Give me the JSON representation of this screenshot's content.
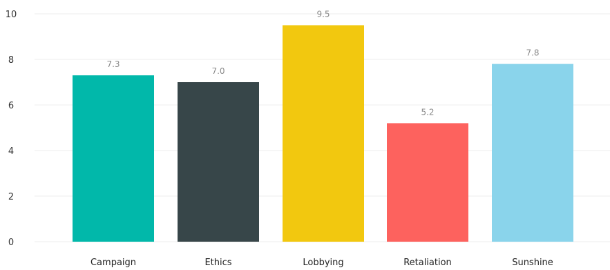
{
  "chart_data": {
    "type": "bar",
    "categories": [
      "Campaign",
      "Ethics",
      "Lobbying",
      "Retaliation",
      "Sunshine"
    ],
    "values": [
      7.3,
      7.0,
      9.5,
      5.2,
      7.8
    ],
    "data_labels": [
      "7.3",
      "7.0",
      "9.5",
      "5.2",
      "7.8"
    ],
    "colors": [
      "#01b8aa",
      "#374649",
      "#f2c80f",
      "#fd625e",
      "#8ad4eb"
    ],
    "title": "",
    "xlabel": "",
    "ylabel": "",
    "ylim": [
      0,
      10
    ],
    "yticks": [
      0,
      2,
      4,
      6,
      8,
      10
    ],
    "grid": true,
    "legend": "none"
  }
}
